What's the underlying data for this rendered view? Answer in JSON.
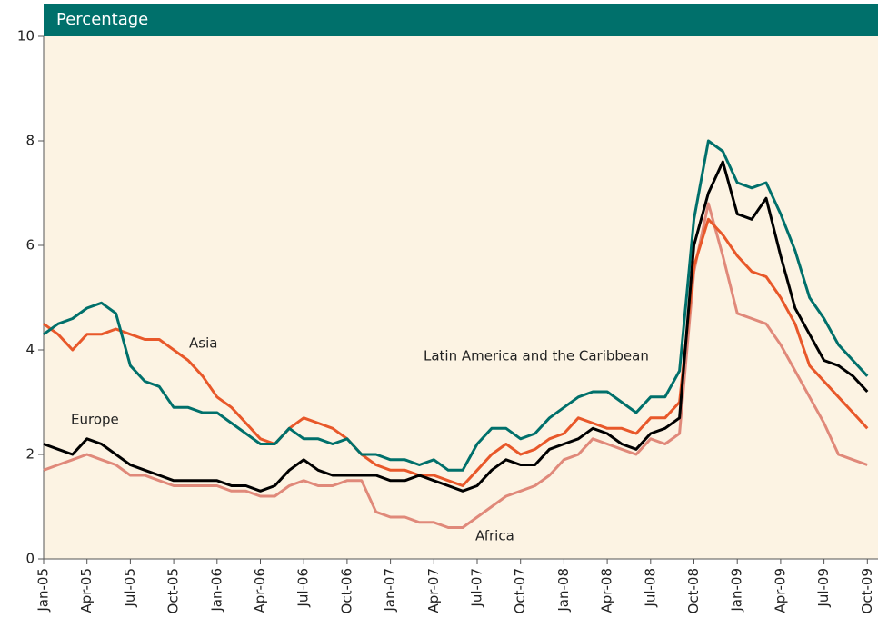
{
  "chart_data": {
    "type": "line",
    "title": "Percentage",
    "categories": [
      "Jan-05",
      null,
      null,
      "Apr-05",
      null,
      null,
      "Jul-05",
      null,
      null,
      "Oct-05",
      null,
      null,
      "Jan-06",
      null,
      null,
      "Apr-06",
      null,
      null,
      "Jul-06",
      null,
      null,
      "Oct-06",
      null,
      null,
      "Jan-07",
      null,
      null,
      "Apr-07",
      null,
      null,
      "Jul-07",
      null,
      null,
      "Oct-07",
      null,
      null,
      "Jan-08",
      null,
      null,
      "Apr-08",
      null,
      null,
      "Jul-08",
      null,
      null,
      "Oct-08",
      null,
      null,
      "Jan-09",
      null,
      null,
      "Apr-09",
      null,
      null,
      "Jul-09",
      null,
      null,
      "Oct-09"
    ],
    "series": [
      {
        "name": "Africa",
        "color": "#e0897a",
        "values": [
          1.7,
          1.8,
          1.9,
          2.0,
          1.9,
          1.8,
          1.6,
          1.6,
          1.5,
          1.4,
          1.4,
          1.4,
          1.4,
          1.3,
          1.3,
          1.2,
          1.2,
          1.4,
          1.5,
          1.4,
          1.4,
          1.5,
          1.5,
          0.9,
          0.8,
          0.8,
          0.7,
          0.7,
          0.6,
          0.6,
          0.8,
          1.0,
          1.2,
          1.3,
          1.4,
          1.6,
          1.9,
          2.0,
          2.3,
          2.2,
          2.1,
          2.0,
          2.3,
          2.2,
          2.4,
          5.5,
          6.8,
          5.8,
          4.7,
          4.6,
          4.5,
          4.1,
          3.6,
          3.1,
          2.6,
          2.0,
          1.9,
          1.8
        ]
      },
      {
        "name": "Asia",
        "color": "#e8582a",
        "values": [
          4.5,
          4.3,
          4.0,
          4.3,
          4.3,
          4.4,
          4.3,
          4.2,
          4.2,
          4.0,
          3.8,
          3.5,
          3.1,
          2.9,
          2.6,
          2.3,
          2.2,
          2.5,
          2.7,
          2.6,
          2.5,
          2.3,
          2.0,
          1.8,
          1.7,
          1.7,
          1.6,
          1.6,
          1.5,
          1.4,
          1.7,
          2.0,
          2.2,
          2.0,
          2.1,
          2.3,
          2.4,
          2.7,
          2.6,
          2.5,
          2.5,
          2.4,
          2.7,
          2.7,
          3.0,
          5.6,
          6.5,
          6.2,
          5.8,
          5.5,
          5.4,
          5.0,
          4.5,
          3.7,
          3.4,
          3.1,
          2.8,
          2.5
        ]
      },
      {
        "name": "Latin America and the Caribbean",
        "color": "#00706b",
        "values": [
          4.3,
          4.5,
          4.6,
          4.8,
          4.9,
          4.7,
          3.7,
          3.4,
          3.3,
          2.9,
          2.9,
          2.8,
          2.8,
          2.6,
          2.4,
          2.2,
          2.2,
          2.5,
          2.3,
          2.3,
          2.2,
          2.3,
          2.0,
          2.0,
          1.9,
          1.9,
          1.8,
          1.9,
          1.7,
          1.7,
          2.2,
          2.5,
          2.5,
          2.3,
          2.4,
          2.7,
          2.9,
          3.1,
          3.2,
          3.2,
          3.0,
          2.8,
          3.1,
          3.1,
          3.6,
          6.5,
          8.0,
          7.8,
          7.2,
          7.1,
          7.2,
          6.6,
          5.9,
          5.0,
          4.6,
          4.1,
          3.8,
          3.5
        ]
      },
      {
        "name": "Europe",
        "color": "#000000",
        "values": [
          2.2,
          2.1,
          2.0,
          2.3,
          2.2,
          2.0,
          1.8,
          1.7,
          1.6,
          1.5,
          1.5,
          1.5,
          1.5,
          1.4,
          1.4,
          1.3,
          1.4,
          1.7,
          1.9,
          1.7,
          1.6,
          1.6,
          1.6,
          1.6,
          1.5,
          1.5,
          1.6,
          1.5,
          1.4,
          1.3,
          1.4,
          1.7,
          1.9,
          1.8,
          1.8,
          2.1,
          2.2,
          2.3,
          2.5,
          2.4,
          2.2,
          2.1,
          2.4,
          2.5,
          2.7,
          6.0,
          7.0,
          7.6,
          6.6,
          6.5,
          6.9,
          5.8,
          4.8,
          4.3,
          3.8,
          3.7,
          3.5,
          3.2
        ]
      }
    ],
    "annotations": [
      "Asia",
      "Europe",
      "Latin America and the Caribbean",
      "Africa"
    ],
    "ylim": [
      0,
      10
    ],
    "yticks": [
      0,
      2,
      4,
      6,
      8,
      10
    ]
  }
}
